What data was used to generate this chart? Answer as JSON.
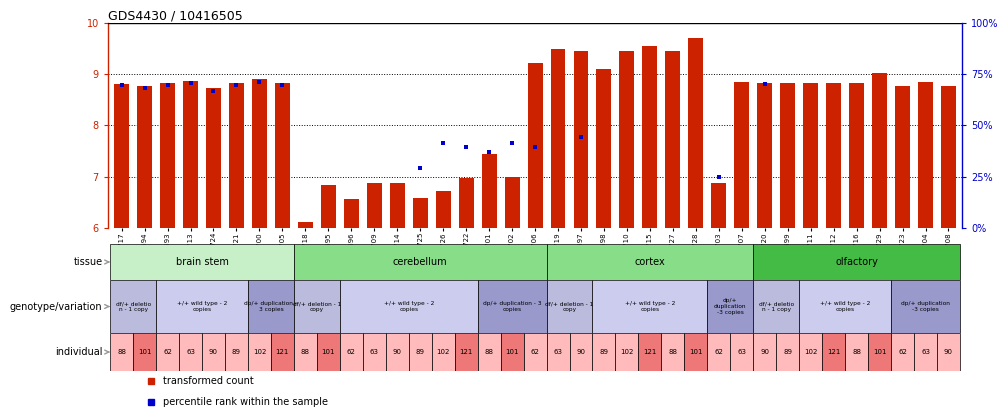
{
  "title": "GDS4430 / 10416505",
  "samples": [
    "GSM792717",
    "GSM792694",
    "GSM792693",
    "GSM792713",
    "GSM792724",
    "GSM792721",
    "GSM792700",
    "GSM792705",
    "GSM792718",
    "GSM792695",
    "GSM792696",
    "GSM792709",
    "GSM792714",
    "GSM792725",
    "GSM792726",
    "GSM792722",
    "GSM792701",
    "GSM792702",
    "GSM792706",
    "GSM792719",
    "GSM792697",
    "GSM792698",
    "GSM792710",
    "GSM792715",
    "GSM792727",
    "GSM792728",
    "GSM792703",
    "GSM792707",
    "GSM792720",
    "GSM792699",
    "GSM792711",
    "GSM792712",
    "GSM792716",
    "GSM792729",
    "GSM792723",
    "GSM792704",
    "GSM792708"
  ],
  "red_values": [
    8.8,
    8.77,
    8.82,
    8.87,
    8.73,
    8.83,
    8.9,
    8.83,
    6.12,
    6.84,
    6.57,
    6.88,
    6.88,
    6.58,
    6.72,
    6.97,
    7.45,
    7.0,
    9.22,
    9.5,
    9.45,
    9.1,
    9.45,
    9.55,
    9.45,
    9.7,
    6.88,
    8.85,
    8.83,
    8.83,
    8.83,
    8.83,
    8.83,
    9.02,
    8.77,
    8.85,
    8.77
  ],
  "blue_values": [
    8.78,
    8.73,
    8.78,
    8.83,
    8.68,
    8.78,
    8.85,
    8.78,
    null,
    null,
    null,
    null,
    null,
    7.17,
    7.65,
    7.57,
    7.48,
    7.65,
    7.57,
    null,
    7.78,
    null,
    null,
    null,
    null,
    null,
    7.0,
    null,
    8.8,
    null,
    null,
    null,
    null,
    null,
    null,
    null,
    null
  ],
  "tissue_groups": [
    {
      "label": "brain stem",
      "start": 0,
      "end": 7,
      "color": "#c8f0c8"
    },
    {
      "label": "cerebellum",
      "start": 8,
      "end": 18,
      "color": "#88dd88"
    },
    {
      "label": "cortex",
      "start": 19,
      "end": 27,
      "color": "#88dd88"
    },
    {
      "label": "olfactory",
      "start": 28,
      "end": 36,
      "color": "#44bb44"
    }
  ],
  "genotype_groups": [
    {
      "label": "df/+ deletio\nn - 1 copy",
      "start": 0,
      "end": 1,
      "color": "#bbbbdd"
    },
    {
      "label": "+/+ wild type - 2\ncopies",
      "start": 2,
      "end": 5,
      "color": "#ccccee"
    },
    {
      "label": "dp/+ duplication -\n3 copies",
      "start": 6,
      "end": 7,
      "color": "#9999cc"
    },
    {
      "label": "df/+ deletion - 1\ncopy",
      "start": 8,
      "end": 9,
      "color": "#bbbbdd"
    },
    {
      "label": "+/+ wild type - 2\ncopies",
      "start": 10,
      "end": 15,
      "color": "#ccccee"
    },
    {
      "label": "dp/+ duplication - 3\ncopies",
      "start": 16,
      "end": 18,
      "color": "#9999cc"
    },
    {
      "label": "df/+ deletion - 1\ncopy",
      "start": 19,
      "end": 20,
      "color": "#bbbbdd"
    },
    {
      "label": "+/+ wild type - 2\ncopies",
      "start": 21,
      "end": 25,
      "color": "#ccccee"
    },
    {
      "label": "dp/+\nduplication\n-3 copies",
      "start": 26,
      "end": 27,
      "color": "#9999cc"
    },
    {
      "label": "df/+ deletio\nn - 1 copy",
      "start": 28,
      "end": 29,
      "color": "#bbbbdd"
    },
    {
      "label": "+/+ wild type - 2\ncopies",
      "start": 30,
      "end": 33,
      "color": "#ccccee"
    },
    {
      "label": "dp/+ duplication\n-3 copies",
      "start": 34,
      "end": 36,
      "color": "#9999cc"
    }
  ],
  "individual_vals": [
    "88",
    "101",
    "62",
    "63",
    "90",
    "89",
    "102",
    "121"
  ],
  "ylim": [
    6,
    10
  ],
  "yticks": [
    6,
    7,
    8,
    9,
    10
  ],
  "y2lim": [
    0,
    100
  ],
  "y2ticks": [
    0,
    25,
    50,
    75,
    100
  ],
  "bar_color": "#cc2200",
  "dot_color": "#0000cc",
  "legend_red": "transformed count",
  "legend_blue": "percentile rank within the sample",
  "row_label_tissue": "tissue",
  "row_label_geno": "genotype/variation",
  "row_label_indiv": "individual"
}
